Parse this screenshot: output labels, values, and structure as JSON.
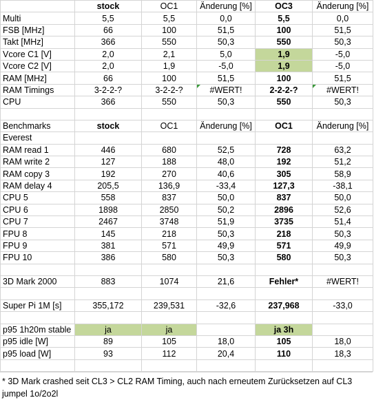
{
  "table": {
    "rows": [
      [
        null,
        "stock",
        "OC1",
        "Änderung [%]",
        "OC3",
        "Änderung [%]"
      ],
      [
        "Multi",
        "5,5",
        "5,5",
        "0,0",
        "5,5",
        "0,0"
      ],
      [
        "FSB [MHz]",
        "66",
        "100",
        "51,5",
        "100",
        "51,5"
      ],
      [
        "Takt [MHz]",
        "366",
        "550",
        "50,3",
        "550",
        "50,3"
      ],
      [
        "Vcore C1 [V]",
        "2,0",
        "2,1",
        "5,0",
        "1,9",
        "-5,0"
      ],
      [
        "Vcore C2 [V]",
        "2,0",
        "1,9",
        "-5,0",
        "1,9",
        "-5,0"
      ],
      [
        "RAM [MHz]",
        "66",
        "100",
        "51,5",
        "100",
        "51,5"
      ],
      [
        "RAM Timings",
        "3-2-2-?",
        "3-2-2-?",
        "#WERT!",
        "2-2-2-?",
        "#WERT!"
      ],
      [
        "CPU",
        "366",
        "550",
        "50,3",
        "550",
        "50,3"
      ],
      null,
      [
        "Benchmarks",
        "stock",
        "OC1",
        "Änderung [%]",
        "OC1",
        "Änderung [%]"
      ],
      [
        "Everest",
        null,
        null,
        null,
        null,
        null
      ],
      [
        "RAM read 1",
        "446",
        "680",
        "52,5",
        "728",
        "63,2"
      ],
      [
        "RAM write 2",
        "127",
        "188",
        "48,0",
        "192",
        "51,2"
      ],
      [
        "RAM copy 3",
        "192",
        "270",
        "40,6",
        "305",
        "58,9"
      ],
      [
        "RAM delay 4",
        "205,5",
        "136,9",
        "-33,4",
        "127,3",
        "-38,1"
      ],
      [
        "CPU 5",
        "558",
        "837",
        "50,0",
        "837",
        "50,0"
      ],
      [
        "CPU 6",
        "1898",
        "2850",
        "50,2",
        "2896",
        "52,6"
      ],
      [
        "CPU 7",
        "2467",
        "3748",
        "51,9",
        "3735",
        "51,4"
      ],
      [
        "FPU 8",
        "145",
        "218",
        "50,3",
        "218",
        "50,3"
      ],
      [
        "FPU 9",
        "381",
        "571",
        "49,9",
        "571",
        "49,9"
      ],
      [
        "FPU 10",
        "386",
        "580",
        "50,3",
        "580",
        "50,3"
      ],
      null,
      [
        "3D Mark 2000",
        "883",
        "1074",
        "21,6",
        "Fehler*",
        "#WERT!"
      ],
      null,
      [
        "Super Pi 1M [s]",
        "355,172",
        "239,531",
        "-32,6",
        "237,968",
        "-33,0"
      ],
      null,
      [
        "p95 1h20m stable",
        "ja",
        "ja",
        null,
        "ja 3h",
        null
      ],
      [
        "p95 idle [W]",
        "89",
        "105",
        "18,0",
        "105",
        "18,0"
      ],
      [
        "p95 load [W]",
        "93",
        "112",
        "20,4",
        "110",
        "18,3"
      ],
      null
    ]
  },
  "notes": [
    "* 3D Mark crashed seit CL3 > CL2 RAM Timing, auch nach erneutem Zurücksetzen auf CL3",
    "jumpel 1o/2o2l"
  ]
}
